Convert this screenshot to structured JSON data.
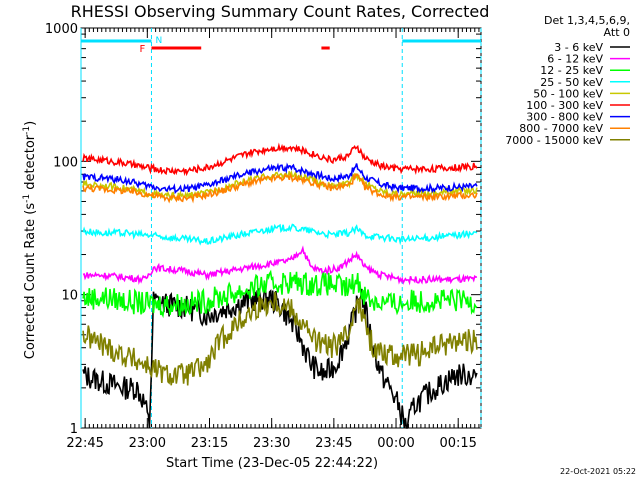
{
  "chart_data": {
    "type": "line",
    "title": "RHESSI Observing Summary Count Rates, Corrected",
    "xlabel": "Start Time (23-Dec-05 22:44:22)",
    "ylabel_main": "Corrected Count Rate (s",
    "ylabel_sup1": "-1",
    "ylabel_mid": " detector",
    "ylabel_sup2": "-1",
    "ylabel_end": ")",
    "yscale": "log",
    "ylim": [
      1,
      1000
    ],
    "y_ticks": [
      {
        "value": 1,
        "label": "1"
      },
      {
        "value": 10,
        "label": "10"
      },
      {
        "value": 100,
        "label": "100"
      },
      {
        "value": 1000,
        "label": "1000"
      }
    ],
    "xlim_min": [
      -0.5,
      96
    ],
    "x_ticks": [
      {
        "min": 0.5,
        "label": "22:45"
      },
      {
        "min": 15.5,
        "label": "23:00"
      },
      {
        "min": 30.5,
        "label": "23:15"
      },
      {
        "min": 45.5,
        "label": "23:30"
      },
      {
        "min": 60.5,
        "label": "23:45"
      },
      {
        "min": 75.5,
        "label": "00:00"
      },
      {
        "min": 90.5,
        "label": "00:15"
      }
    ],
    "legend_header_1": "Det 1,3,4,5,6,9,",
    "legend_header_2": "Att 0",
    "legend_placement": "right",
    "series": [
      {
        "name": "3 - 6 keV",
        "color": "#000000",
        "points": [
          [
            0,
            2.5
          ],
          [
            5,
            2.2
          ],
          [
            10,
            2.0
          ],
          [
            13,
            2.0
          ],
          [
            15,
            1.5
          ],
          [
            16,
            1.0
          ],
          [
            17,
            9.0
          ],
          [
            20,
            8.5
          ],
          [
            25,
            8.0
          ],
          [
            30,
            7.0
          ],
          [
            35,
            8.0
          ],
          [
            40,
            9.0
          ],
          [
            45,
            9.5
          ],
          [
            48,
            8.0
          ],
          [
            52,
            5.0
          ],
          [
            55,
            3.0
          ],
          [
            58,
            2.5
          ],
          [
            61,
            3.0
          ],
          [
            64,
            5.0
          ],
          [
            66,
            8.0
          ],
          [
            67,
            11.0
          ],
          [
            68,
            8.0
          ],
          [
            70,
            4.0
          ],
          [
            72,
            2.5
          ],
          [
            74,
            2.0
          ],
          [
            76,
            1.5
          ],
          [
            78,
            1.0
          ],
          [
            80,
            1.5
          ],
          [
            85,
            2.0
          ],
          [
            90,
            2.5
          ],
          [
            95,
            2.5
          ]
        ]
      },
      {
        "name": "6 - 12 keV",
        "color": "#ff00ff",
        "points": [
          [
            0,
            14
          ],
          [
            5,
            14
          ],
          [
            10,
            13.5
          ],
          [
            15,
            13
          ],
          [
            17,
            16
          ],
          [
            25,
            15
          ],
          [
            30,
            14
          ],
          [
            35,
            15
          ],
          [
            40,
            16
          ],
          [
            45,
            17
          ],
          [
            50,
            18
          ],
          [
            53,
            22
          ],
          [
            55,
            16
          ],
          [
            58,
            15
          ],
          [
            62,
            16
          ],
          [
            66,
            20
          ],
          [
            68,
            16
          ],
          [
            72,
            14
          ],
          [
            77,
            13
          ],
          [
            85,
            13
          ],
          [
            90,
            13
          ],
          [
            95,
            13
          ]
        ]
      },
      {
        "name": "12 - 25 keV",
        "color": "#00ff00",
        "points": [
          [
            0,
            9.5
          ],
          [
            5,
            9.5
          ],
          [
            10,
            9
          ],
          [
            15,
            8.5
          ],
          [
            20,
            8.5
          ],
          [
            25,
            8.5
          ],
          [
            30,
            9
          ],
          [
            35,
            10
          ],
          [
            40,
            11
          ],
          [
            45,
            12
          ],
          [
            50,
            12.5
          ],
          [
            55,
            12
          ],
          [
            60,
            12
          ],
          [
            64,
            11
          ],
          [
            66,
            13
          ],
          [
            68,
            10
          ],
          [
            70,
            9
          ],
          [
            75,
            8.5
          ],
          [
            80,
            9
          ],
          [
            85,
            9
          ],
          [
            90,
            9
          ],
          [
            95,
            9
          ]
        ]
      },
      {
        "name": "25 - 50 keV",
        "color": "#00ffff",
        "points": [
          [
            0,
            30
          ],
          [
            5,
            29
          ],
          [
            10,
            29
          ],
          [
            15,
            28
          ],
          [
            20,
            27
          ],
          [
            25,
            26
          ],
          [
            30,
            25
          ],
          [
            35,
            27
          ],
          [
            40,
            29
          ],
          [
            45,
            31
          ],
          [
            50,
            32
          ],
          [
            55,
            30
          ],
          [
            60,
            28
          ],
          [
            64,
            29
          ],
          [
            66,
            31
          ],
          [
            68,
            28
          ],
          [
            72,
            27
          ],
          [
            76,
            26
          ],
          [
            80,
            26
          ],
          [
            85,
            27
          ],
          [
            90,
            28
          ],
          [
            95,
            29
          ]
        ]
      },
      {
        "name": "50 - 100 keV",
        "color": "#c8c800",
        "points": [
          [
            0,
            67
          ],
          [
            5,
            66
          ],
          [
            10,
            63
          ],
          [
            15,
            58
          ],
          [
            20,
            55
          ],
          [
            25,
            55
          ],
          [
            30,
            58
          ],
          [
            35,
            65
          ],
          [
            40,
            72
          ],
          [
            45,
            78
          ],
          [
            50,
            80
          ],
          [
            55,
            73
          ],
          [
            60,
            65
          ],
          [
            64,
            68
          ],
          [
            66,
            80
          ],
          [
            68,
            68
          ],
          [
            72,
            60
          ],
          [
            76,
            57
          ],
          [
            80,
            57
          ],
          [
            85,
            58
          ],
          [
            90,
            60
          ],
          [
            95,
            61
          ]
        ]
      },
      {
        "name": "100 - 300 keV",
        "color": "#ff0000",
        "points": [
          [
            0,
            105
          ],
          [
            5,
            102
          ],
          [
            10,
            97
          ],
          [
            15,
            90
          ],
          [
            20,
            85
          ],
          [
            25,
            85
          ],
          [
            30,
            90
          ],
          [
            35,
            102
          ],
          [
            40,
            115
          ],
          [
            45,
            125
          ],
          [
            50,
            128
          ],
          [
            55,
            115
          ],
          [
            60,
            102
          ],
          [
            64,
            110
          ],
          [
            66,
            130
          ],
          [
            68,
            105
          ],
          [
            72,
            92
          ],
          [
            76,
            88
          ],
          [
            80,
            88
          ],
          [
            85,
            88
          ],
          [
            90,
            90
          ],
          [
            95,
            92
          ]
        ]
      },
      {
        "name": "300 - 800 keV",
        "color": "#0000ff",
        "points": [
          [
            0,
            76
          ],
          [
            5,
            75
          ],
          [
            10,
            72
          ],
          [
            15,
            66
          ],
          [
            20,
            62
          ],
          [
            25,
            62
          ],
          [
            30,
            66
          ],
          [
            35,
            74
          ],
          [
            40,
            82
          ],
          [
            45,
            88
          ],
          [
            50,
            90
          ],
          [
            55,
            82
          ],
          [
            60,
            74
          ],
          [
            64,
            78
          ],
          [
            66,
            92
          ],
          [
            68,
            76
          ],
          [
            72,
            67
          ],
          [
            76,
            63
          ],
          [
            80,
            63
          ],
          [
            85,
            63
          ],
          [
            90,
            64
          ],
          [
            95,
            65
          ]
        ]
      },
      {
        "name": "800 - 7000 keV",
        "color": "#ff8000",
        "points": [
          [
            0,
            63
          ],
          [
            5,
            62
          ],
          [
            10,
            60
          ],
          [
            15,
            57
          ],
          [
            20,
            53
          ],
          [
            25,
            53
          ],
          [
            30,
            56
          ],
          [
            35,
            62
          ],
          [
            40,
            69
          ],
          [
            45,
            74
          ],
          [
            50,
            76
          ],
          [
            55,
            70
          ],
          [
            60,
            63
          ],
          [
            64,
            66
          ],
          [
            66,
            78
          ],
          [
            68,
            64
          ],
          [
            72,
            56
          ],
          [
            76,
            54
          ],
          [
            80,
            54
          ],
          [
            85,
            54
          ],
          [
            90,
            55
          ],
          [
            95,
            56
          ]
        ]
      },
      {
        "name": "7000 - 15000 keV",
        "color": "#808000",
        "points": [
          [
            0,
            5
          ],
          [
            3,
            4.5
          ],
          [
            6,
            4
          ],
          [
            10,
            3.5
          ],
          [
            15,
            3
          ],
          [
            20,
            2.5
          ],
          [
            25,
            2.5
          ],
          [
            30,
            3.0
          ],
          [
            33,
            4.5
          ],
          [
            37,
            6
          ],
          [
            42,
            8
          ],
          [
            46,
            9
          ],
          [
            50,
            8
          ],
          [
            53,
            6
          ],
          [
            56,
            4.5
          ],
          [
            60,
            4
          ],
          [
            64,
            5
          ],
          [
            66,
            10
          ],
          [
            68,
            6
          ],
          [
            70,
            4
          ],
          [
            75,
            3.5
          ],
          [
            80,
            3.5
          ],
          [
            85,
            4
          ],
          [
            90,
            4.5
          ],
          [
            95,
            4.5
          ]
        ]
      }
    ],
    "annotations": {
      "attenuator_state_letter": "N",
      "flare_letter": "F",
      "night_periods_min": [
        [
          -0.5,
          16.5
        ],
        [
          77,
          96
        ]
      ],
      "flare_bars_min": [
        [
          16.5,
          28.5
        ],
        [
          57.5,
          59.5
        ]
      ]
    },
    "timestamp": "22-Oct-2021 05:22"
  }
}
